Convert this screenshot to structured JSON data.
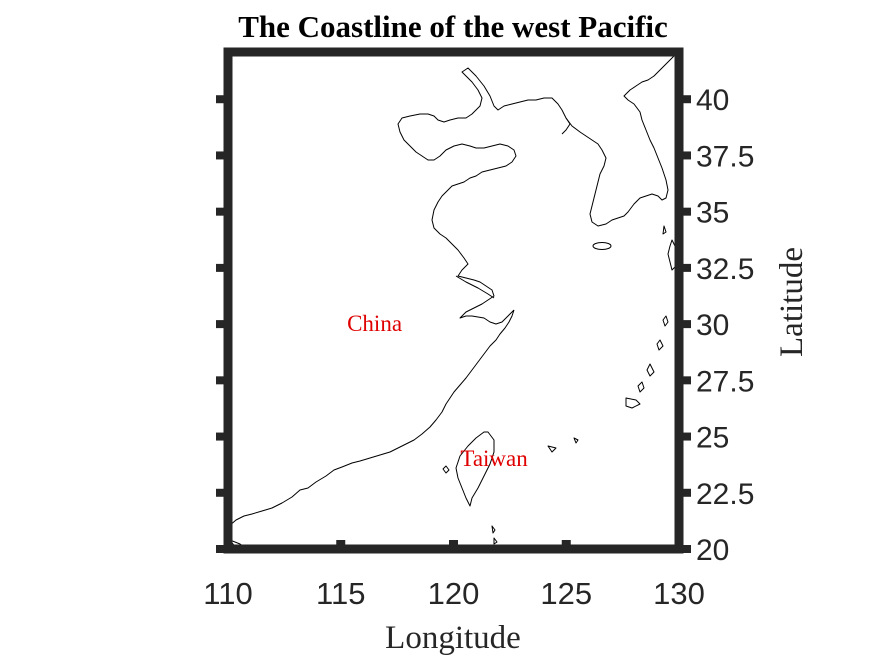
{
  "map": {
    "title": "The Coastline of the west Pacific",
    "x_axis": {
      "label": "Longitude",
      "min": 110,
      "max": 130,
      "ticks": [
        110,
        115,
        120,
        125,
        130
      ]
    },
    "y_axis": {
      "label": "Latitude",
      "min": 20,
      "max": 42.1,
      "ticks": [
        "20",
        "22.5",
        "25",
        "27.5",
        "30",
        "32.5",
        "35",
        "37.5",
        "40"
      ],
      "position": "right"
    },
    "annotations": [
      {
        "text": "China",
        "lon": 116.5,
        "lat": 30,
        "color": "#e00000"
      },
      {
        "text": "Taiwan",
        "lon": 121.8,
        "lat": 24,
        "color": "#e00000"
      }
    ],
    "colors": {
      "coastline": "#000000",
      "frame": "#262626",
      "background": "#ffffff"
    },
    "frame_style": "thick box"
  }
}
